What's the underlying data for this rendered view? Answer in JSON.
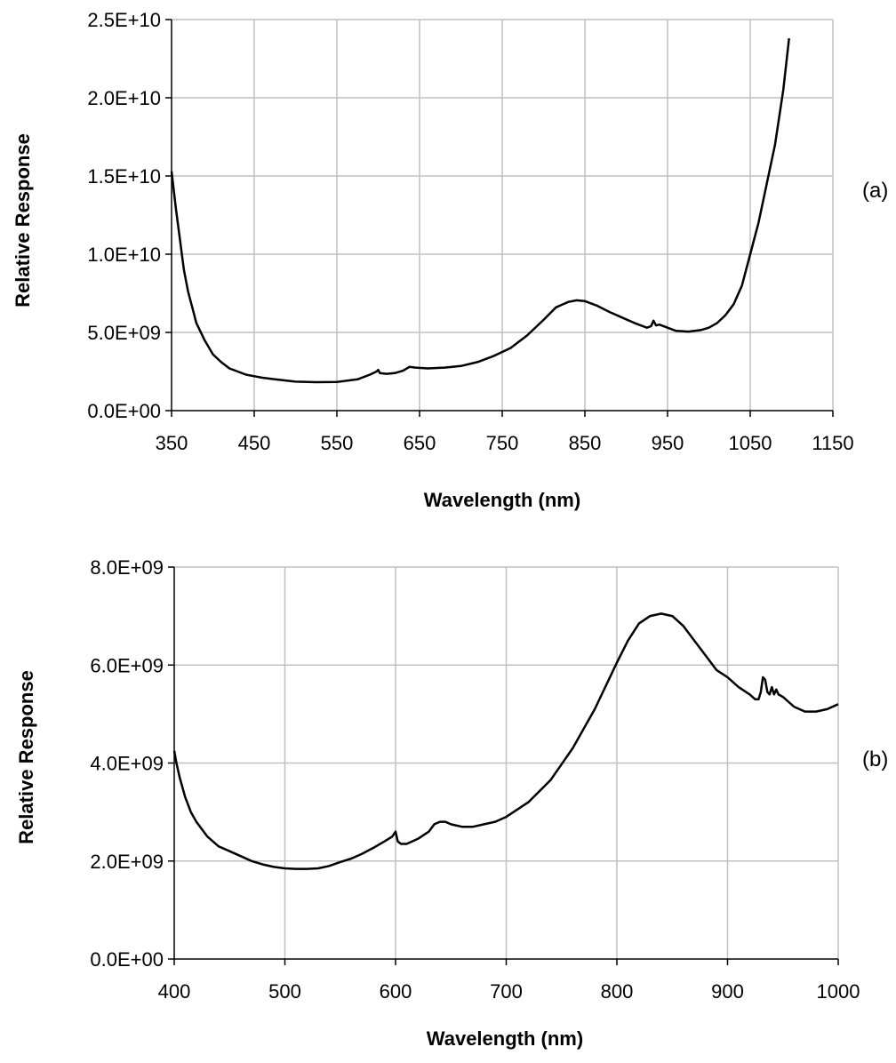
{
  "chart_data": [
    {
      "type": "line",
      "panel_label": "(a)",
      "xlabel": "Wavelength (nm)",
      "ylabel": "Relative Response",
      "xlim": [
        350,
        1150
      ],
      "ylim": [
        0,
        25000000000
      ],
      "x_ticks": [
        350,
        450,
        550,
        650,
        750,
        850,
        950,
        1050,
        1150
      ],
      "y_ticks": [
        0,
        5000000000,
        10000000000,
        15000000000,
        20000000000,
        25000000000
      ],
      "x_tick_labels": [
        "350",
        "450",
        "550",
        "650",
        "750",
        "850",
        "950",
        "1050",
        "1150"
      ],
      "y_tick_labels": [
        "0.0E+00",
        "5.0E+09",
        "1.0E+10",
        "1.5E+10",
        "2.0E+10",
        "2.5E+10"
      ],
      "grid": true,
      "series": [
        {
          "x": [
            350,
            355,
            360,
            365,
            370,
            375,
            380,
            390,
            400,
            410,
            420,
            430,
            440,
            450,
            460,
            475,
            500,
            525,
            550,
            575,
            590,
            598,
            600,
            602,
            610,
            620,
            630,
            638,
            645,
            660,
            680,
            700,
            720,
            740,
            760,
            780,
            800,
            815,
            830,
            840,
            850,
            865,
            880,
            895,
            910,
            925,
            930,
            933,
            936,
            940,
            950,
            960,
            975,
            990,
            1000,
            1010,
            1020,
            1030,
            1040,
            1050,
            1060,
            1070,
            1080,
            1090,
            1097
          ],
          "y": [
            15300000000,
            13000000000,
            11000000000,
            9000000000,
            7600000000,
            6600000000,
            5600000000,
            4500000000,
            3600000000,
            3100000000,
            2700000000,
            2500000000,
            2300000000,
            2200000000,
            2100000000,
            2000000000,
            1850000000,
            1820000000,
            1830000000,
            2000000000,
            2300000000,
            2500000000,
            2600000000,
            2400000000,
            2350000000,
            2400000000,
            2550000000,
            2800000000,
            2750000000,
            2700000000,
            2750000000,
            2850000000,
            3100000000,
            3500000000,
            4000000000,
            4800000000,
            5800000000,
            6600000000,
            6950000000,
            7050000000,
            7000000000,
            6700000000,
            6300000000,
            5950000000,
            5600000000,
            5300000000,
            5400000000,
            5750000000,
            5450000000,
            5500000000,
            5300000000,
            5100000000,
            5050000000,
            5150000000,
            5300000000,
            5600000000,
            6100000000,
            6800000000,
            8000000000,
            10000000000,
            12000000000,
            14500000000,
            17000000000,
            20500000000,
            23800000000
          ]
        }
      ]
    },
    {
      "type": "line",
      "panel_label": "(b)",
      "xlabel": "Wavelength (nm)",
      "ylabel": "Relative Response",
      "xlim": [
        400,
        1000
      ],
      "ylim": [
        0,
        8000000000
      ],
      "x_ticks": [
        400,
        500,
        600,
        700,
        800,
        900,
        1000
      ],
      "y_ticks": [
        0,
        2000000000,
        4000000000,
        6000000000,
        8000000000
      ],
      "x_tick_labels": [
        "400",
        "500",
        "600",
        "700",
        "800",
        "900",
        "1000"
      ],
      "y_tick_labels": [
        "0.0E+00",
        "2.0E+09",
        "4.0E+09",
        "6.0E+09",
        "8.0E+09"
      ],
      "grid": true,
      "series": [
        {
          "x": [
            400,
            402,
            405,
            410,
            415,
            420,
            430,
            440,
            450,
            460,
            470,
            480,
            490,
            500,
            510,
            520,
            530,
            540,
            550,
            560,
            570,
            580,
            590,
            597,
            600,
            602,
            605,
            610,
            620,
            630,
            635,
            640,
            645,
            650,
            660,
            670,
            680,
            690,
            700,
            720,
            740,
            760,
            780,
            800,
            810,
            820,
            830,
            840,
            850,
            860,
            870,
            880,
            890,
            900,
            910,
            920,
            925,
            928,
            930,
            932,
            934,
            936,
            938,
            940,
            942,
            944,
            946,
            950,
            960,
            970,
            980,
            990,
            1000
          ],
          "y": [
            4250000000,
            4000000000,
            3700000000,
            3300000000,
            3000000000,
            2800000000,
            2500000000,
            2300000000,
            2200000000,
            2100000000,
            2000000000,
            1930000000,
            1880000000,
            1850000000,
            1840000000,
            1840000000,
            1850000000,
            1900000000,
            1980000000,
            2050000000,
            2150000000,
            2270000000,
            2400000000,
            2500000000,
            2600000000,
            2400000000,
            2350000000,
            2350000000,
            2450000000,
            2600000000,
            2750000000,
            2800000000,
            2800000000,
            2750000000,
            2700000000,
            2700000000,
            2750000000,
            2800000000,
            2900000000,
            3200000000,
            3650000000,
            4300000000,
            5100000000,
            6050000000,
            6500000000,
            6850000000,
            7000000000,
            7050000000,
            7000000000,
            6800000000,
            6500000000,
            6200000000,
            5900000000,
            5750000000,
            5550000000,
            5400000000,
            5300000000,
            5300000000,
            5450000000,
            5750000000,
            5700000000,
            5450000000,
            5400000000,
            5550000000,
            5400000000,
            5500000000,
            5400000000,
            5350000000,
            5150000000,
            5050000000,
            5050000000,
            5100000000,
            5200000000
          ]
        }
      ]
    }
  ]
}
